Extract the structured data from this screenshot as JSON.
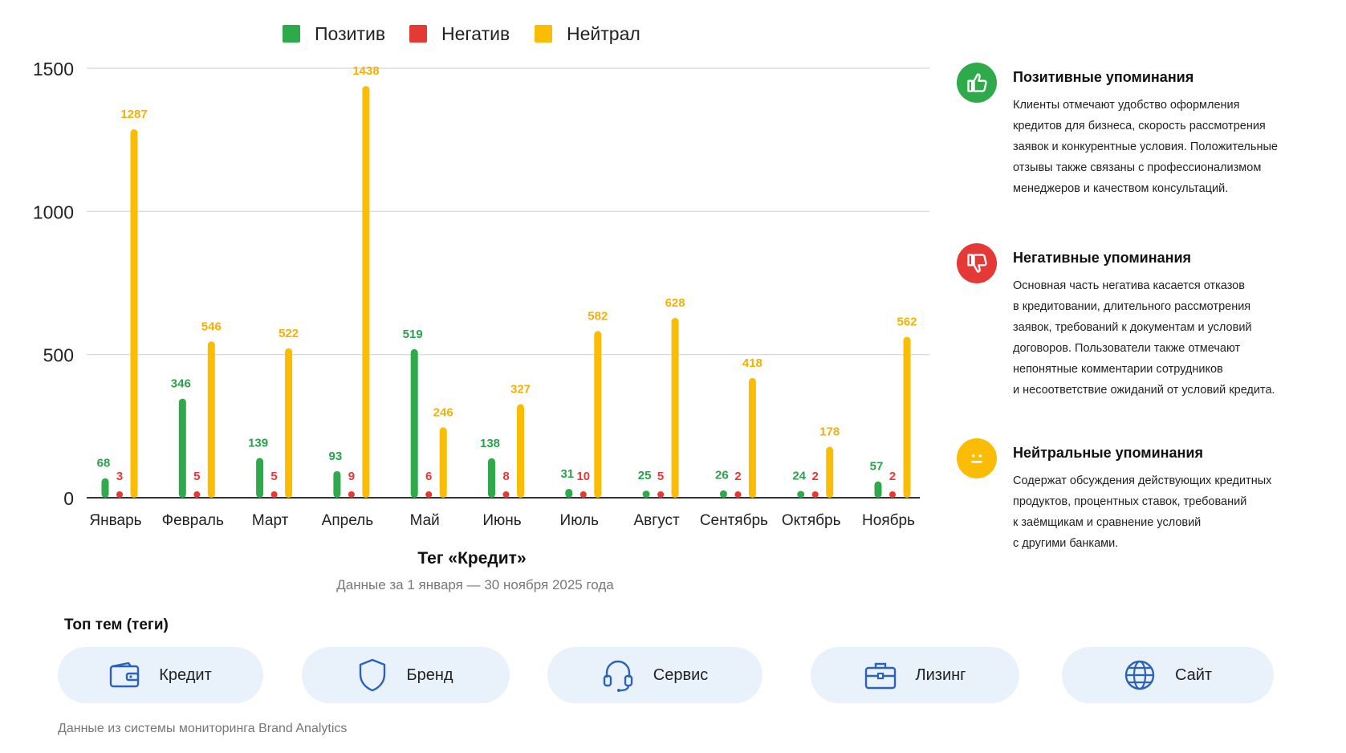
{
  "chart_data": {
    "type": "bar",
    "title": "Тег «Кредит»",
    "subtitle": "Данные за 1 января — 30 ноября 2025 года",
    "categories": [
      "Январь",
      "Февраль",
      "Март",
      "Апрель",
      "Май",
      "Июнь",
      "Июль",
      "Август",
      "Сентябрь",
      "Октябрь",
      "Ноябрь"
    ],
    "series": [
      {
        "name": "Позитив",
        "color": "#2eaa4a",
        "label_color": "#2aa14a",
        "values": [
          68,
          346,
          139,
          93,
          519,
          138,
          31,
          25,
          26,
          24,
          57
        ]
      },
      {
        "name": "Негатив",
        "color": "#e53935",
        "label_color": "#e53935",
        "values": [
          3,
          5,
          5,
          9,
          6,
          8,
          10,
          5,
          2,
          2,
          2
        ]
      },
      {
        "name": "Нейтрал",
        "color": "#fbbc05",
        "label_color": "#f3b005",
        "values": [
          1287,
          546,
          522,
          1438,
          246,
          327,
          582,
          628,
          418,
          178,
          562
        ]
      }
    ],
    "y_ticks": [
      "0",
      "500",
      "1000",
      "1500"
    ],
    "ylim": [
      0,
      1500
    ],
    "grid": true,
    "legend_position": "top"
  },
  "notes": [
    {
      "icon": "thumbs-up-icon",
      "color": "#2eaa4a",
      "title": "Позитивные упоминания",
      "lines": [
        "Клиенты отмечают удобство оформления",
        "кредитов для бизнеса, скорость рассмотрения",
        "заявок и конкурентные условия. Положительные",
        "отзывы также связаны с профессионализмом",
        "менеджеров и качеством консультаций."
      ]
    },
    {
      "icon": "thumbs-down-icon",
      "color": "#e53935",
      "title": "Негативные упоминания",
      "lines": [
        "Основная часть негатива касается отказов",
        "в кредитовании, длительного рассмотрения",
        "заявок, требований к документам и условий",
        "договоров. Пользователи также отмечают",
        "непонятные комментарии сотрудников",
        "и несоответствие ожиданий от условий кредита."
      ]
    },
    {
      "icon": "neutral-face-icon",
      "color": "#fbbc05",
      "title": "Нейтральные упоминания",
      "lines": [
        "Содержат обсуждения действующих кредитных",
        "продуктов, процентных ставок, требований",
        "к заёмщикам и сравнение условий",
        "с другими банками."
      ]
    }
  ],
  "tags": {
    "title": "Топ тем (теги)",
    "items": [
      {
        "label": "Кредит",
        "icon": "wallet-icon"
      },
      {
        "label": "Бренд",
        "icon": "shield-icon"
      },
      {
        "label": "Сервис",
        "icon": "headset-icon"
      },
      {
        "label": "Лизинг",
        "icon": "briefcase-icon"
      },
      {
        "label": "Сайт",
        "icon": "globe-icon"
      }
    ]
  },
  "source": "Данные из системы мониторинга Brand Analytics"
}
